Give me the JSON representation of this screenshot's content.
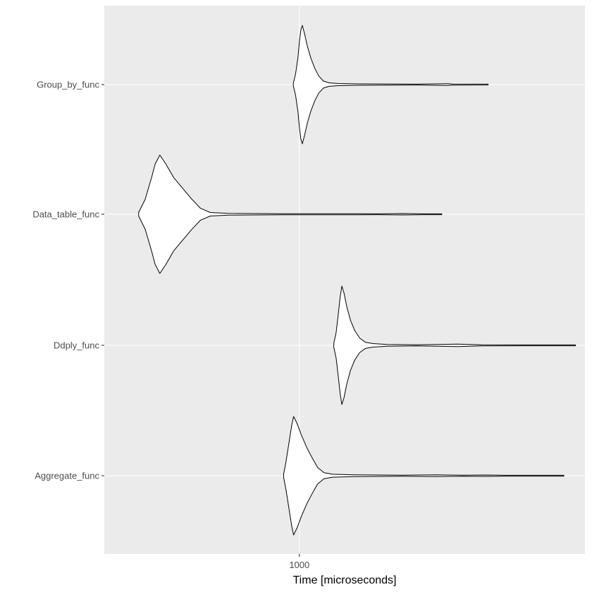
{
  "chart_data": {
    "type": "violin",
    "orientation": "horizontal",
    "x_scale": "log10",
    "xlabel": "Time [microseconds]",
    "ylabel": "",
    "xlim": [
      270,
      6800
    ],
    "x_ticks": [
      {
        "value": 1000,
        "label": "1000"
      }
    ],
    "categories": [
      "Group_by_func",
      "Data_table_func",
      "Ddply_func",
      "Aggregate_func"
    ],
    "grid": true,
    "legend": "none",
    "colors": {
      "panel_background": "#ebebeb",
      "grid_line": "#ffffff",
      "violin_fill": "#ffffff",
      "violin_outline": "#000000",
      "tick_text": "#4d4d4d",
      "axis_text": "#000000"
    },
    "series": [
      {
        "category": "Group_by_func",
        "range": [
          960,
          3550
        ],
        "profile": [
          [
            960,
            0.02
          ],
          [
            975,
            0.18
          ],
          [
            990,
            0.45
          ],
          [
            1000,
            0.72
          ],
          [
            1010,
            0.92
          ],
          [
            1020,
            1.0
          ],
          [
            1035,
            0.86
          ],
          [
            1055,
            0.65
          ],
          [
            1080,
            0.45
          ],
          [
            1110,
            0.27
          ],
          [
            1140,
            0.14
          ],
          [
            1175,
            0.06
          ],
          [
            1220,
            0.03
          ],
          [
            1300,
            0.018
          ],
          [
            1500,
            0.012
          ],
          [
            2200,
            0.006
          ],
          [
            2700,
            0.015
          ],
          [
            2800,
            0.008
          ],
          [
            3550,
            0.003
          ]
        ]
      },
      {
        "category": "Data_table_func",
        "range": [
          340,
          2600
        ],
        "profile": [
          [
            340,
            0.03
          ],
          [
            355,
            0.25
          ],
          [
            370,
            0.6
          ],
          [
            380,
            0.85
          ],
          [
            392,
            1.0
          ],
          [
            408,
            0.85
          ],
          [
            430,
            0.62
          ],
          [
            455,
            0.45
          ],
          [
            485,
            0.26
          ],
          [
            515,
            0.1
          ],
          [
            550,
            0.03
          ],
          [
            620,
            0.015
          ],
          [
            900,
            0.008
          ],
          [
            1400,
            0.01
          ],
          [
            1700,
            0.006
          ],
          [
            2000,
            0.012
          ],
          [
            2300,
            0.006
          ],
          [
            2600,
            0.003
          ]
        ]
      },
      {
        "category": "Ddply_func",
        "range": [
          1260,
          6380
        ],
        "profile": [
          [
            1260,
            0.03
          ],
          [
            1280,
            0.22
          ],
          [
            1300,
            0.55
          ],
          [
            1315,
            0.82
          ],
          [
            1330,
            1.0
          ],
          [
            1350,
            0.88
          ],
          [
            1375,
            0.65
          ],
          [
            1410,
            0.42
          ],
          [
            1450,
            0.25
          ],
          [
            1500,
            0.12
          ],
          [
            1560,
            0.05
          ],
          [
            1640,
            0.03
          ],
          [
            1800,
            0.015
          ],
          [
            2200,
            0.008
          ],
          [
            2900,
            0.02
          ],
          [
            3400,
            0.01
          ],
          [
            4500,
            0.006
          ],
          [
            6380,
            0.003
          ]
        ]
      },
      {
        "category": "Aggregate_func",
        "range": [
          900,
          5900
        ],
        "profile": [
          [
            900,
            0.03
          ],
          [
            915,
            0.25
          ],
          [
            935,
            0.6
          ],
          [
            950,
            0.85
          ],
          [
            962,
            1.0
          ],
          [
            985,
            0.88
          ],
          [
            1015,
            0.68
          ],
          [
            1050,
            0.48
          ],
          [
            1090,
            0.3
          ],
          [
            1130,
            0.14
          ],
          [
            1180,
            0.05
          ],
          [
            1250,
            0.025
          ],
          [
            1450,
            0.015
          ],
          [
            2000,
            0.008
          ],
          [
            2500,
            0.015
          ],
          [
            3000,
            0.008
          ],
          [
            3500,
            0.012
          ],
          [
            4000,
            0.005
          ],
          [
            5900,
            0.003
          ]
        ]
      }
    ]
  }
}
